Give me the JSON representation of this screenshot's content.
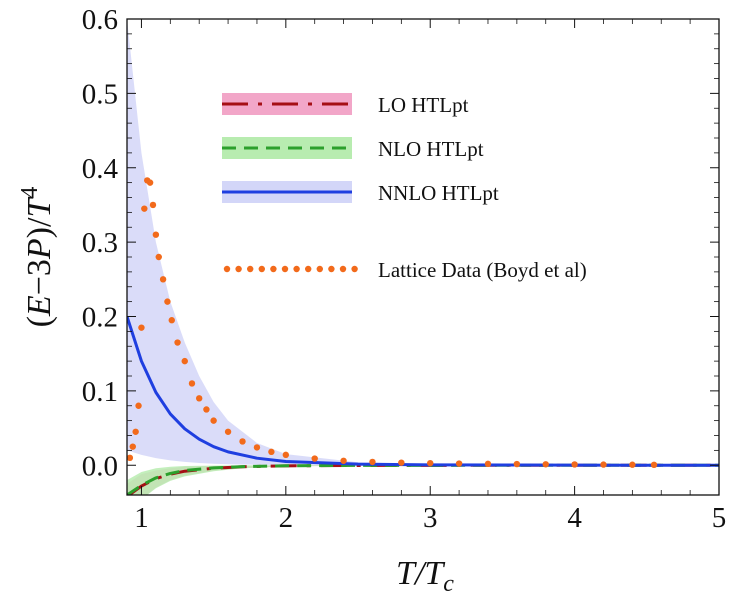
{
  "chart_data": {
    "type": "line",
    "xlabel": "T/T_c",
    "ylabel": "(E−3P)/T^4",
    "xlim": [
      0.9,
      5.0
    ],
    "ylim": [
      -0.04,
      0.6
    ],
    "x_ticks": [
      1,
      2,
      3,
      4,
      5
    ],
    "x_tick_labels": [
      "1",
      "2",
      "3",
      "4",
      "5"
    ],
    "y_ticks": [
      0.0,
      0.1,
      0.2,
      0.3,
      0.4,
      0.5,
      0.6
    ],
    "y_tick_labels": [
      "0.0",
      "0.1",
      "0.2",
      "0.3",
      "0.4",
      "0.5",
      "0.6"
    ],
    "grid": false,
    "legend_position": "top-right",
    "series": [
      {
        "name": "LO HTLpt",
        "style": "long-dash-dot",
        "color": "#a50f15",
        "band_color": "#f2a6c8",
        "x": [
          0.9,
          1.0,
          1.1,
          1.2,
          1.3,
          1.5,
          1.7,
          2.0,
          2.5,
          3.0,
          4.0,
          5.0
        ],
        "values": [
          -0.042,
          -0.028,
          -0.018,
          -0.012,
          -0.008,
          -0.004,
          -0.002,
          -0.0008,
          -0.0003,
          -0.0001,
          0.0,
          0.0
        ],
        "band_lower": [
          -0.06,
          -0.045,
          -0.03,
          -0.02,
          -0.014,
          -0.007,
          -0.004,
          -0.0015,
          -0.0005,
          -0.0002,
          0.0,
          0.0
        ],
        "band_upper": [
          -0.025,
          -0.012,
          -0.007,
          -0.004,
          -0.002,
          -0.001,
          -0.0005,
          -0.0002,
          0.0,
          0.0,
          0.0,
          0.0
        ]
      },
      {
        "name": "NLO HTLpt",
        "style": "dashed",
        "color": "#2ca02c",
        "band_color": "#b8ecb0",
        "x": [
          0.9,
          1.0,
          1.1,
          1.2,
          1.3,
          1.5,
          1.7,
          2.0,
          2.5,
          3.0,
          4.0,
          5.0
        ],
        "values": [
          -0.04,
          -0.027,
          -0.017,
          -0.011,
          -0.007,
          -0.0035,
          -0.0018,
          -0.0007,
          -0.0002,
          -0.0001,
          0.0,
          0.0
        ],
        "band_lower": [
          -0.062,
          -0.046,
          -0.031,
          -0.021,
          -0.015,
          -0.008,
          -0.004,
          -0.0015,
          -0.0005,
          -0.0002,
          0.0,
          0.0
        ],
        "band_upper": [
          -0.02,
          -0.009,
          -0.004,
          -0.002,
          -0.001,
          -0.0005,
          -0.0002,
          0.0,
          0.0,
          0.0,
          0.0,
          0.0
        ]
      },
      {
        "name": "NNLO HTLpt",
        "style": "solid",
        "color": "#1f3fe0",
        "band_color": "#d3d6f8",
        "x": [
          0.9,
          1.0,
          1.1,
          1.2,
          1.3,
          1.4,
          1.5,
          1.6,
          1.8,
          2.0,
          2.5,
          3.0,
          4.0,
          5.0
        ],
        "values": [
          0.2,
          0.14,
          0.098,
          0.069,
          0.049,
          0.035,
          0.025,
          0.018,
          0.0095,
          0.005,
          0.0015,
          0.0005,
          0.0001,
          0.0
        ],
        "band_lower": [
          0.02,
          0.014,
          0.0095,
          0.0065,
          0.0045,
          0.003,
          0.002,
          0.0014,
          0.0007,
          0.0003,
          0.0001,
          0.0,
          0.0,
          0.0
        ],
        "band_upper": [
          0.6,
          0.42,
          0.3,
          0.22,
          0.165,
          0.12,
          0.085,
          0.06,
          0.03,
          0.015,
          0.004,
          0.0012,
          0.0002,
          0.0
        ]
      },
      {
        "name": "Lattice Data (Boyd et al)",
        "style": "dots",
        "color": "#f26a1b",
        "x": [
          0.92,
          0.94,
          0.96,
          0.98,
          1.0,
          1.02,
          1.04,
          1.06,
          1.08,
          1.1,
          1.12,
          1.15,
          1.18,
          1.21,
          1.25,
          1.3,
          1.35,
          1.4,
          1.45,
          1.5,
          1.6,
          1.7,
          1.8,
          1.9,
          2.0,
          2.2,
          2.4,
          2.6,
          2.8,
          3.0,
          3.2,
          3.4,
          3.6,
          3.8,
          4.0,
          4.2,
          4.4,
          4.55
        ],
        "values": [
          0.01,
          0.025,
          0.045,
          0.08,
          0.185,
          0.345,
          0.383,
          0.38,
          0.35,
          0.31,
          0.28,
          0.25,
          0.22,
          0.195,
          0.165,
          0.14,
          0.11,
          0.09,
          0.075,
          0.06,
          0.045,
          0.032,
          0.024,
          0.018,
          0.014,
          0.009,
          0.006,
          0.0045,
          0.0035,
          0.0028,
          0.0023,
          0.0019,
          0.0016,
          0.0013,
          0.0011,
          0.0009,
          0.0007,
          0.0006
        ]
      }
    ]
  }
}
